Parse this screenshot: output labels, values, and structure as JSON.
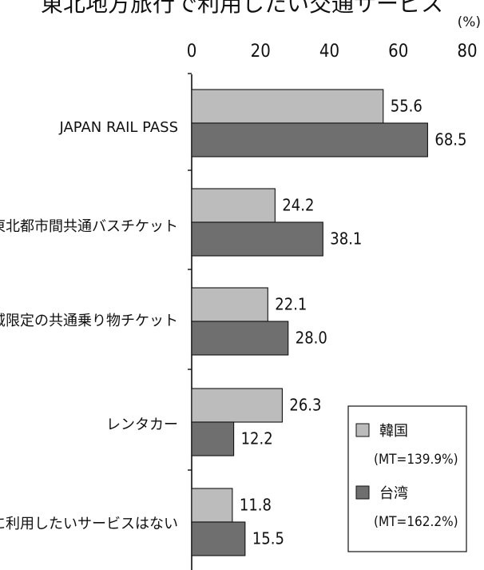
{
  "chart_data": {
    "type": "bar",
    "orientation": "horizontal",
    "title": "東北地方旅行で利用したい交通サービス",
    "unit_label": "(%)",
    "xlim": [
      0,
      80
    ],
    "xticks": [
      0,
      20,
      40,
      60,
      80
    ],
    "categories": [
      "JAPAN RAIL PASS",
      "東北都市間共通バスチケット",
      "地域限定の共通乗り物チケット",
      "レンタカー",
      "特に利用したいサービスはない"
    ],
    "series": [
      {
        "name": "韓国",
        "note": "(MT=139.9%)",
        "color": "#bcbcbc",
        "values": [
          55.6,
          24.2,
          22.1,
          26.3,
          11.8
        ]
      },
      {
        "name": "台湾",
        "note": "(MT=162.2%)",
        "color": "#6f6f6f",
        "values": [
          68.5,
          38.1,
          28.0,
          12.2,
          15.5
        ]
      }
    ],
    "value_labels": [
      [
        "55.6",
        "24.2",
        "22.1",
        "26.3",
        "11.8"
      ],
      [
        "68.5",
        "38.1",
        "28.0",
        "12.2",
        "15.5"
      ]
    ],
    "legend": {
      "position": "bottom-right"
    }
  }
}
